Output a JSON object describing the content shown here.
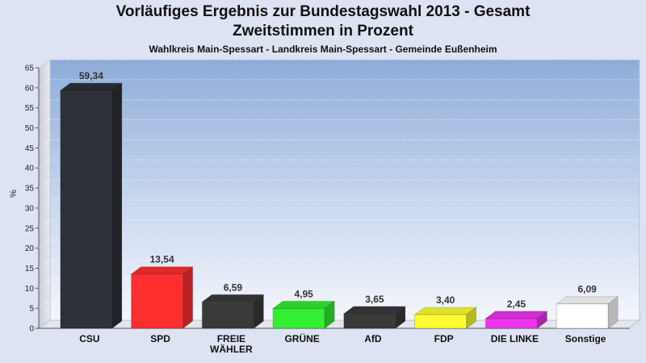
{
  "header": {
    "title_line1": "Vorläufiges Ergebnis zur Bundestagswahl 2013 - Gesamt",
    "title_line2": "Zweitstimmen in Prozent",
    "subtitle": "Wahlkreis Main-Spessart - Landkreis Main-Spessart - Gemeinde Eußenheim"
  },
  "chart_data": {
    "type": "bar",
    "title": "Vorläufiges Ergebnis zur Bundestagswahl 2013 - Gesamt",
    "subtitle": "Zweitstimmen in Prozent",
    "ylabel": "%",
    "ylim": [
      0,
      65
    ],
    "yticks": [
      0,
      5,
      10,
      15,
      20,
      25,
      30,
      35,
      40,
      45,
      50,
      55,
      60,
      65
    ],
    "grid": true,
    "categories": [
      {
        "label": [
          "CSU"
        ],
        "value": 59.34,
        "value_label": "59,34",
        "color": "#2e3138"
      },
      {
        "label": [
          "SPD"
        ],
        "value": 13.54,
        "value_label": "13,54",
        "color": "#ff2f2f"
      },
      {
        "label": [
          "FREIE",
          "WÄHLER"
        ],
        "value": 6.59,
        "value_label": "6,59",
        "color": "#3a3a3a"
      },
      {
        "label": [
          "GRÜNE"
        ],
        "value": 4.95,
        "value_label": "4,95",
        "color": "#33ee33"
      },
      {
        "label": [
          "AfD"
        ],
        "value": 3.65,
        "value_label": "3,65",
        "color": "#3a3a3a"
      },
      {
        "label": [
          "FDP"
        ],
        "value": 3.4,
        "value_label": "3,40",
        "color": "#ffff33"
      },
      {
        "label": [
          "DIE LINKE"
        ],
        "value": 2.45,
        "value_label": "2,45",
        "color": "#ee33ee"
      },
      {
        "label": [
          "Sonstige"
        ],
        "value": 6.09,
        "value_label": "6,09",
        "color": "#ffffff"
      }
    ]
  }
}
